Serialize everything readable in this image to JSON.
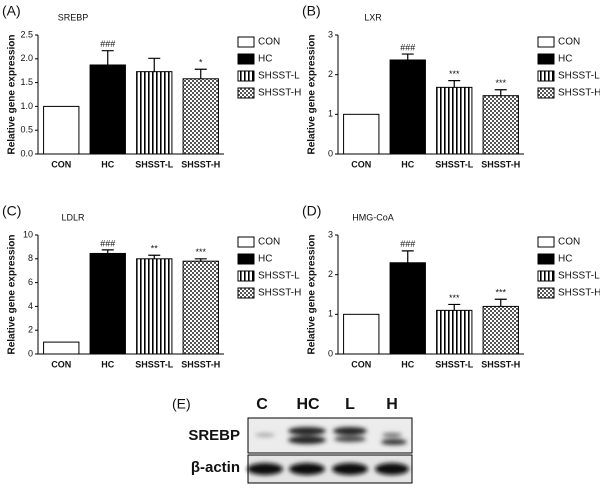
{
  "chart_data": [
    {
      "type": "bar",
      "panel_label": "(A)",
      "title": "SREBP",
      "y_label": "Relative gene expression",
      "categories": [
        "CON",
        "HC",
        "SHSST-L",
        "SHSST-H"
      ],
      "values": [
        1.0,
        1.87,
        1.73,
        1.58
      ],
      "errors": [
        null,
        0.3,
        0.28,
        0.2
      ],
      "annotations": [
        null,
        "###",
        null,
        "*"
      ],
      "fills": [
        "white",
        "black",
        "vertical-stripes",
        "checkered"
      ],
      "ylim": [
        0,
        2.5
      ],
      "yticks": [
        {
          "value": 0,
          "label": "0.0"
        },
        0.5,
        {
          "value": 1,
          "label": "1.0"
        },
        1.5,
        {
          "value": 2,
          "label": "2.0"
        },
        2.5
      ],
      "legend": true
    },
    {
      "type": "bar",
      "panel_label": "(B)",
      "title": "LXR",
      "y_label": "Relative gene expression",
      "categories": [
        "CON",
        "HC",
        "SHSST-L",
        "SHSST-H"
      ],
      "values": [
        1.0,
        2.37,
        1.68,
        1.47
      ],
      "errors": [
        null,
        0.15,
        0.17,
        0.15
      ],
      "annotations": [
        null,
        "###",
        "***",
        "***"
      ],
      "fills": [
        "white",
        "black",
        "vertical-stripes",
        "checkered"
      ],
      "ylim": [
        0,
        3
      ],
      "yticks": [
        0,
        1,
        2,
        3
      ],
      "legend": true
    },
    {
      "type": "bar",
      "panel_label": "(C)",
      "title": "LDLR",
      "y_label": "Relative gene expression",
      "categories": [
        "CON",
        "HC",
        "SHSST-L",
        "SHSST-H"
      ],
      "values": [
        1.0,
        8.45,
        8.0,
        7.8
      ],
      "errors": [
        null,
        0.3,
        0.3,
        0.2
      ],
      "annotations": [
        null,
        "###",
        "**",
        "***"
      ],
      "fills": [
        "white",
        "black",
        "vertical-stripes",
        "checkered"
      ],
      "ylim": [
        0,
        10
      ],
      "yticks": [
        0,
        2,
        4,
        6,
        8,
        10
      ],
      "legend": true
    },
    {
      "type": "bar",
      "panel_label": "(D)",
      "title": "HMG-CoA",
      "y_label": "Relative gene expression",
      "categories": [
        "CON",
        "HC",
        "SHSST-L",
        "SHSST-H"
      ],
      "values": [
        1.0,
        2.3,
        1.1,
        1.2
      ],
      "errors": [
        null,
        0.3,
        0.15,
        0.18
      ],
      "annotations": [
        null,
        "###",
        "***",
        "***"
      ],
      "fills": [
        "white",
        "black",
        "vertical-stripes",
        "checkered"
      ],
      "ylim": [
        0,
        3
      ],
      "yticks": [
        0,
        1,
        2,
        3
      ],
      "legend": true
    }
  ],
  "blot": {
    "panel_label": "(E)",
    "lanes": [
      "C",
      "HC",
      "L",
      "H"
    ],
    "rows": [
      "SREBP",
      "β-actin"
    ]
  }
}
